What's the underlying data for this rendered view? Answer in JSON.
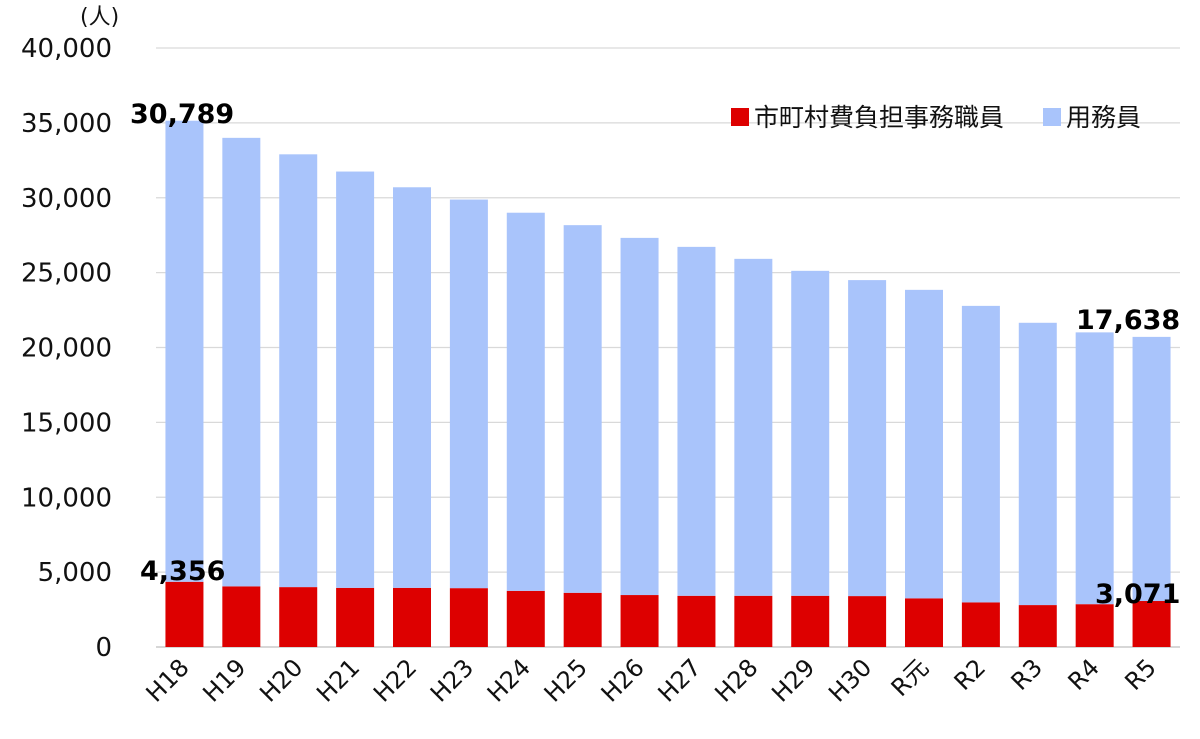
{
  "chart_data": {
    "type": "bar",
    "stacked": true,
    "unit_label": "(人)",
    "categories": [
      "H18",
      "H19",
      "H20",
      "H21",
      "H22",
      "H23",
      "H24",
      "H25",
      "H26",
      "H27",
      "H28",
      "H29",
      "H30",
      "R元",
      "R2",
      "R3",
      "R4",
      "R5"
    ],
    "series": [
      {
        "name": "市町村費負担事務職員",
        "color": "#dd0000",
        "values": [
          4356,
          4050,
          4000,
          3950,
          3950,
          3930,
          3750,
          3620,
          3470,
          3420,
          3420,
          3420,
          3400,
          3250,
          2980,
          2800,
          2860,
          3071
        ]
      },
      {
        "name": "用務員",
        "color": "#a9c4fb",
        "values": [
          30789,
          29950,
          28900,
          27800,
          26750,
          25950,
          25250,
          24550,
          23850,
          23300,
          22500,
          21700,
          21100,
          20600,
          19800,
          18850,
          18150,
          17638
        ]
      }
    ],
    "ylim": [
      0,
      40000
    ],
    "yticks": [
      "0",
      "5,000",
      "10,000",
      "15,000",
      "20,000",
      "25,000",
      "30,000",
      "35,000",
      "40,000"
    ],
    "grid": true,
    "legend_position": "top-right",
    "data_labels": {
      "first_bottom": "4,356",
      "first_top": "30,789",
      "last_bottom": "3,071",
      "last_top": "17,638"
    }
  }
}
